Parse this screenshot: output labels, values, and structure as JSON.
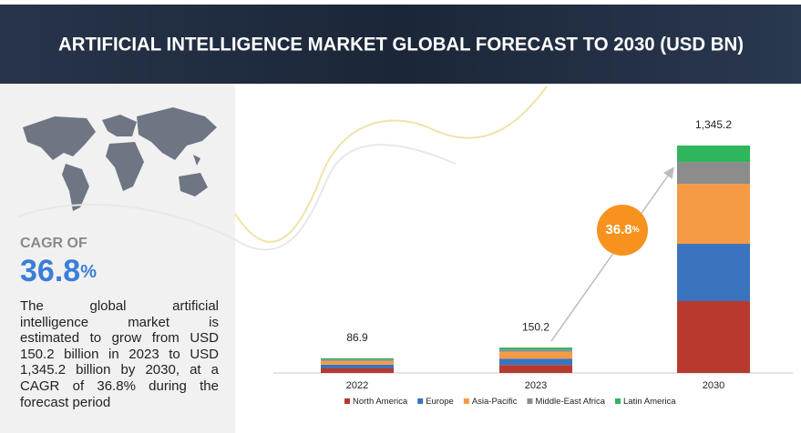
{
  "header": {
    "title": "ARTIFICIAL INTELLIGENCE MARKET GLOBAL FORECAST TO 2030 (USD BN)"
  },
  "side_panel": {
    "cagr_label": "CAGR OF",
    "cagr_value": "36.8",
    "cagr_unit": "%",
    "description_lines": [
      "The global artificial",
      "intelligence market is",
      "estimated to grow from USD",
      "150.2 billion in 2023 to USD",
      "1,345.2 billion by 2030, at a",
      "CAGR of 36.8% during the",
      "forecast period"
    ]
  },
  "chart_data": {
    "type": "bar",
    "stacked": true,
    "categories": [
      "2022",
      "2023",
      "2030"
    ],
    "series": [
      {
        "name": "North America",
        "color": "#b8392e",
        "values": [
          27,
          47,
          425
        ]
      },
      {
        "name": "Europe",
        "color": "#3a74bf",
        "values": [
          22,
          38,
          339
        ]
      },
      {
        "name": "Asia-Pacific",
        "color": "#f59b45",
        "values": [
          22,
          40,
          355
        ]
      },
      {
        "name": "Middle-East Africa",
        "color": "#8c8c8c",
        "values": [
          9,
          14,
          129
        ]
      },
      {
        "name": "Latin America",
        "color": "#2fb55b",
        "values": [
          6.9,
          11.2,
          97.2
        ]
      }
    ],
    "totals": {
      "values": [
        86.9,
        150.2,
        1345.2
      ],
      "value_labels": [
        "86.9",
        "150.2",
        "1,345.2"
      ]
    },
    "badge": {
      "value": "36.8",
      "unit": "%"
    },
    "legend": "bottom"
  }
}
